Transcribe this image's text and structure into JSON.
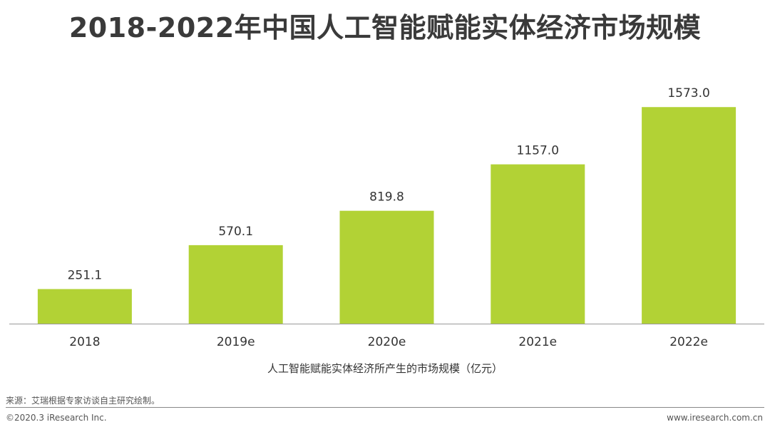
{
  "title": "2018-2022年中国人工智能赋能实体经济市场规模",
  "caption": "人工智能赋能实体经济所产生的市场规模（亿元）",
  "source": "来源：艾瑞根据专家访谈自主研究绘制。",
  "footer": {
    "copyright": "©2020.3 iResearch Inc.",
    "website": "www.iresearch.com.cn"
  },
  "colors": {
    "bar": "#b2d235",
    "axis": "#999999",
    "text": "#333333"
  },
  "chart_data": {
    "type": "bar",
    "categories": [
      "2018",
      "2019e",
      "2020e",
      "2021e",
      "2022e"
    ],
    "series": [
      {
        "name": "人工智能赋能实体经济所产生的市场规模（亿元）",
        "values": [
          251.1,
          570.1,
          819.8,
          1157.0,
          1573.0
        ],
        "labels": [
          "251.1",
          "570.1",
          "819.8",
          "1157.0",
          "1573.0"
        ]
      }
    ],
    "ylim": [
      0,
      1600
    ],
    "grid": false,
    "legend": "bottom"
  }
}
